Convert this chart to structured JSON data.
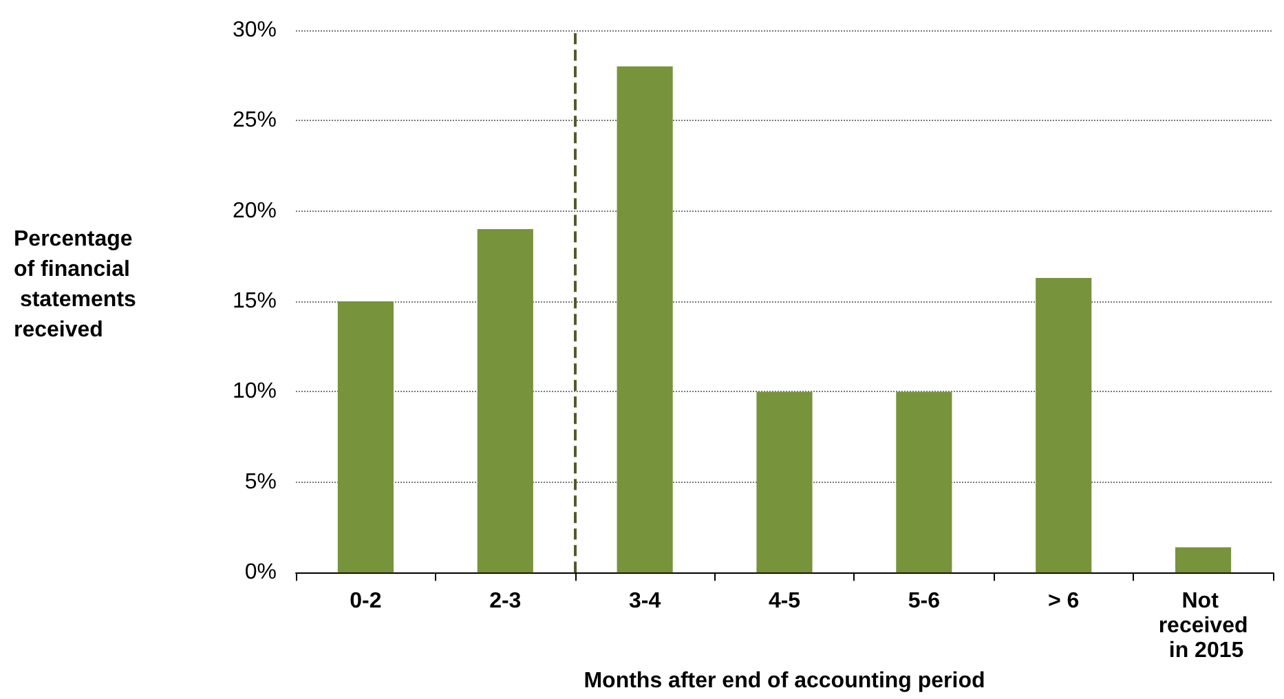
{
  "chart_data": {
    "type": "bar",
    "xlabel": "Months after end of accounting period",
    "ylabel": "Percentage of financial statements received",
    "categories": [
      "0-2",
      "2-3",
      "3-4",
      "4-5",
      "5-6",
      "> 6",
      "Not received in 2015"
    ],
    "values": [
      15,
      19,
      28,
      10,
      10,
      16.3,
      1.4
    ],
    "color": "#77933c",
    "ylim": [
      0,
      30
    ],
    "yticks": [
      {
        "value": 0,
        "label": "0%"
      },
      {
        "value": 5,
        "label": "5%"
      },
      {
        "value": 10,
        "label": "10%"
      },
      {
        "value": 15,
        "label": "15%"
      },
      {
        "value": 20,
        "label": "20%"
      },
      {
        "value": 25,
        "label": "25%"
      },
      {
        "value": 30,
        "label": "30%"
      }
    ],
    "grid": "y",
    "ref_lines": [
      {
        "axis": "x",
        "value": "3-4",
        "line_style": "dashed",
        "color": "#4f5a2e"
      }
    ]
  }
}
